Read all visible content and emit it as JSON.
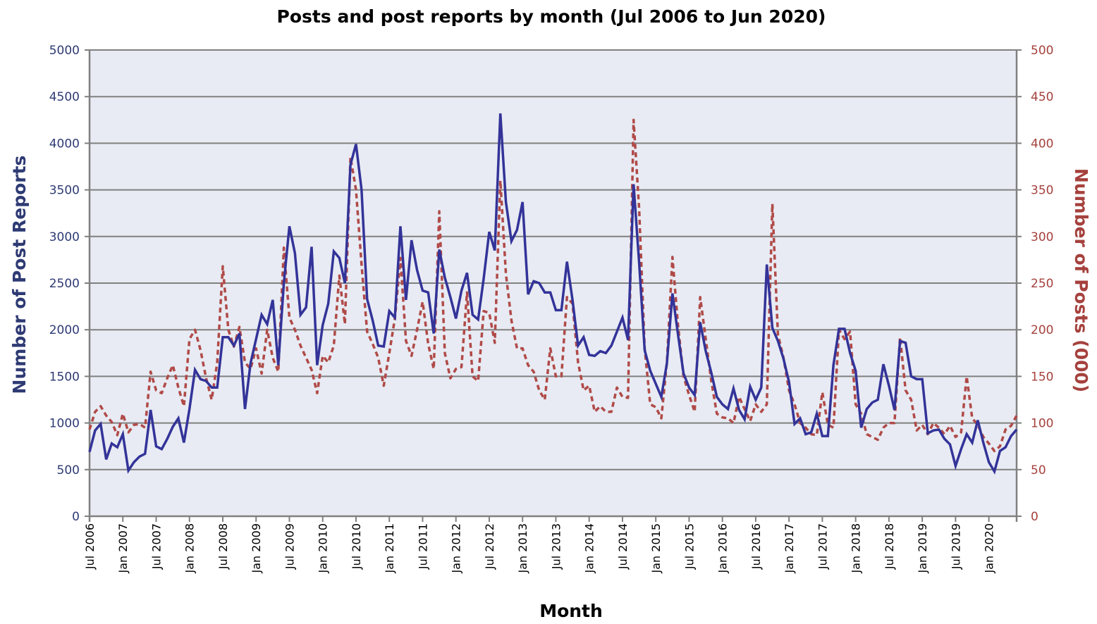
{
  "chart_data": {
    "type": "line",
    "title": "Posts and post reports by month (Jul 2006 to Jun 2020)",
    "xlabel": "Month",
    "ylabel": "Number of Post Reports",
    "y2label": "Number of Posts (000)",
    "ylim": [
      0,
      5000
    ],
    "y2lim": [
      0,
      500
    ],
    "yticks": [
      "0",
      "500",
      "1000",
      "1500",
      "2000",
      "2500",
      "3000",
      "3500",
      "4000",
      "4500",
      "5000"
    ],
    "y2ticks": [
      "0",
      "50",
      "100",
      "150",
      "200",
      "250",
      "300",
      "350",
      "400",
      "450",
      "500"
    ],
    "start_month": "Jul 2006",
    "end_month": "Jun 2020",
    "xtick_labels": [
      "Jul 2006",
      "Jan 2007",
      "Jul 2007",
      "Jan 2008",
      "Jul 2008",
      "Jan 2009",
      "Jul 2009",
      "Jan 2010",
      "Jul 2010",
      "Jan 2011",
      "Jul 2011",
      "Jan 2012",
      "Jul 2012",
      "Jan 2013",
      "Jul 2013",
      "Jan 2014",
      "Jul 2014",
      "Jan 2015",
      "Jul 2015",
      "Jan 2016",
      "Jul 2016",
      "Jan 2017",
      "Jul 2017",
      "Jan 2018",
      "Jul 2018",
      "Jan 2019",
      "Jul 2019",
      "Jan 2020"
    ],
    "grid": true,
    "colors": {
      "reports": "#333399",
      "posts": "#b04a48",
      "plot_bg": "#e8ebf3",
      "grid": "#808080"
    },
    "series": [
      {
        "name": "Number of Post Reports",
        "axis": "left",
        "style": "solid",
        "values": [
          690,
          920,
          990,
          610,
          780,
          740,
          880,
          490,
          580,
          640,
          670,
          1140,
          750,
          720,
          830,
          960,
          1050,
          790,
          1150,
          1570,
          1470,
          1450,
          1380,
          1380,
          1920,
          1920,
          1830,
          1960,
          1150,
          1640,
          1900,
          2160,
          2060,
          2320,
          1620,
          2500,
          3110,
          2820,
          2160,
          2240,
          2890,
          1620,
          2050,
          2280,
          2840,
          2770,
          2500,
          3770,
          3990,
          3500,
          2330,
          2100,
          1830,
          1820,
          2200,
          2130,
          3110,
          2320,
          2960,
          2640,
          2420,
          2400,
          1960,
          2860,
          2560,
          2350,
          2120,
          2420,
          2610,
          2160,
          2110,
          2550,
          3050,
          2850,
          4320,
          3370,
          2950,
          3070,
          3370,
          2380,
          2520,
          2500,
          2400,
          2400,
          2210,
          2210,
          2730,
          2320,
          1830,
          1920,
          1730,
          1720,
          1770,
          1750,
          1830,
          1980,
          2130,
          1890,
          3560,
          2720,
          1780,
          1560,
          1420,
          1280,
          1640,
          2390,
          1950,
          1530,
          1380,
          1300,
          2080,
          1770,
          1540,
          1280,
          1200,
          1150,
          1370,
          1140,
          1040,
          1390,
          1250,
          1380,
          2700,
          2020,
          1880,
          1690,
          1440,
          990,
          1050,
          880,
          900,
          1100,
          860,
          860,
          1620,
          2010,
          2010,
          1750,
          1560,
          950,
          1150,
          1220,
          1250,
          1630,
          1400,
          1140,
          1880,
          1860,
          1500,
          1470,
          1470,
          890,
          920,
          930,
          830,
          770,
          540,
          720,
          880,
          790,
          1030,
          790,
          580,
          480,
          700,
          740,
          860,
          930
        ]
      },
      {
        "name": "Number of Posts (000)",
        "axis": "right",
        "style": "dashed",
        "values": [
          93,
          112,
          118,
          108,
          101,
          87,
          110,
          90,
          98,
          99,
          95,
          155,
          135,
          132,
          148,
          162,
          138,
          118,
          190,
          200,
          178,
          148,
          125,
          165,
          268,
          200,
          182,
          203,
          165,
          158,
          180,
          153,
          200,
          170,
          155,
          288,
          213,
          200,
          183,
          170,
          157,
          132,
          172,
          165,
          183,
          258,
          206,
          385,
          350,
          270,
          198,
          185,
          170,
          140,
          175,
          212,
          277,
          188,
          172,
          200,
          230,
          185,
          158,
          327,
          175,
          148,
          158,
          160,
          240,
          150,
          145,
          220,
          218,
          186,
          360,
          260,
          210,
          180,
          180,
          162,
          155,
          135,
          125,
          180,
          150,
          150,
          235,
          228,
          165,
          135,
          140,
          112,
          118,
          112,
          112,
          138,
          128,
          127,
          425,
          330,
          180,
          120,
          117,
          105,
          165,
          278,
          205,
          150,
          130,
          112,
          235,
          190,
          145,
          110,
          106,
          105,
          100,
          128,
          115,
          102,
          120,
          112,
          120,
          335,
          195,
          170,
          135,
          120,
          100,
          95,
          88,
          87,
          133,
          98,
          95,
          200,
          190,
          198,
          120,
          110,
          88,
          85,
          82,
          95,
          100,
          100,
          192,
          135,
          125,
          92,
          98,
          88,
          100,
          95,
          88,
          97,
          85,
          90,
          150,
          105,
          98,
          85,
          78,
          70,
          75,
          93,
          97,
          108
        ]
      }
    ]
  }
}
